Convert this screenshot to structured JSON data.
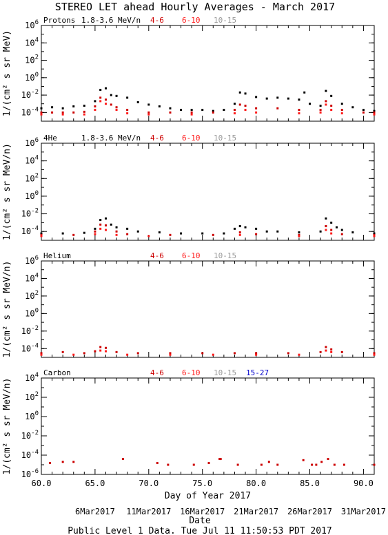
{
  "title": "STEREO LET ahead Hourly Averages - March 2017",
  "footer": "Public Level 1 Data. Tue Jul 11 11:50:53 PDT 2017",
  "colors": {
    "axis": "#000000",
    "black_series": "#000000",
    "red_series": "#cc0000",
    "bright_red_series": "#ff1a1a",
    "gray_label": "#999999",
    "blue_label": "#0000cc"
  },
  "x_axis": {
    "label": "Day of Year 2017",
    "range": [
      60.0,
      91.0
    ],
    "ticks": [
      "60.0",
      "65.0",
      "70.0",
      "75.0",
      "80.0",
      "85.0",
      "90.0"
    ],
    "tick_values": [
      60,
      65,
      70,
      75,
      80,
      85,
      90
    ],
    "date_axis_label": "Date",
    "date_ticks": [
      "6Mar2017",
      "11Mar2017",
      "16Mar2017",
      "21Mar2017",
      "26Mar2017",
      "31Mar2017"
    ],
    "date_tick_values": [
      65,
      70,
      75,
      80,
      85,
      90
    ]
  },
  "chart_data": [
    {
      "type": "scatter",
      "panel_label": "Protons",
      "ylabel": "1/(cm² s sr MeV)",
      "y_scale": "log",
      "ylim": [
        1e-05,
        1000000.0
      ],
      "y_ticks": [
        {
          "base": "10",
          "exp": "6",
          "value": 1000000.0
        },
        {
          "base": "10",
          "exp": "4",
          "value": 10000.0
        },
        {
          "base": "10",
          "exp": "2",
          "value": 100.0
        },
        {
          "base": "10",
          "exp": "0",
          "value": 1
        },
        {
          "base": "10",
          "exp": "-2",
          "value": 0.01
        },
        {
          "base": "10",
          "exp": "-4",
          "value": 0.0001
        }
      ],
      "legend": [
        "1.8-3.6 MeV/n",
        "4-6",
        "6-10",
        "10-15"
      ],
      "series": [
        {
          "name": "1.8-3.6 MeV/n",
          "color": "#000000",
          "points": [
            [
              60,
              0.0003
            ],
            [
              61,
              0.0004
            ],
            [
              62,
              0.0003
            ],
            [
              63,
              0.0005
            ],
            [
              64,
              0.0006
            ],
            [
              65,
              0.002
            ],
            [
              65.5,
              0.04
            ],
            [
              66,
              0.06
            ],
            [
              66.5,
              0.01
            ],
            [
              67,
              0.008
            ],
            [
              68,
              0.005
            ],
            [
              69,
              0.0015
            ],
            [
              70,
              0.0008
            ],
            [
              71,
              0.0005
            ],
            [
              72,
              0.0003
            ],
            [
              73,
              0.0002
            ],
            [
              74,
              0.0002
            ],
            [
              75,
              0.0002
            ],
            [
              76,
              0.00015
            ],
            [
              77,
              0.0002
            ],
            [
              78,
              0.001
            ],
            [
              78.5,
              0.02
            ],
            [
              79,
              0.015
            ],
            [
              80,
              0.006
            ],
            [
              81,
              0.004
            ],
            [
              82,
              0.005
            ],
            [
              83,
              0.004
            ],
            [
              84,
              0.003
            ],
            [
              84.5,
              0.02
            ],
            [
              85,
              0.001
            ],
            [
              86,
              0.0006
            ],
            [
              86.5,
              0.03
            ],
            [
              87,
              0.008
            ],
            [
              88,
              0.001
            ],
            [
              89,
              0.0004
            ],
            [
              90,
              0.0002
            ],
            [
              91,
              0.00015
            ]
          ]
        },
        {
          "name": "4-6",
          "color": "#cc0000",
          "points": [
            [
              60,
              0.0001
            ],
            [
              61,
              0.0001
            ],
            [
              62,
              0.0001
            ],
            [
              63,
              0.0001
            ],
            [
              64,
              0.00012
            ],
            [
              65,
              0.0005
            ],
            [
              65.5,
              0.005
            ],
            [
              66,
              0.003
            ],
            [
              66.5,
              0.0008
            ],
            [
              67,
              0.0004
            ],
            [
              68,
              0.0002
            ],
            [
              70,
              0.0001
            ],
            [
              72,
              0.0001
            ],
            [
              74,
              0.0001
            ],
            [
              76,
              0.0001
            ],
            [
              78,
              0.0002
            ],
            [
              78.5,
              0.0008
            ],
            [
              79,
              0.0006
            ],
            [
              80,
              0.0003
            ],
            [
              82,
              0.0003
            ],
            [
              84,
              0.0002
            ],
            [
              86,
              0.0002
            ],
            [
              86.5,
              0.002
            ],
            [
              87,
              0.0006
            ],
            [
              88,
              0.0002
            ],
            [
              90,
              0.0001
            ],
            [
              91,
              0.0001
            ]
          ]
        },
        {
          "name": "6-10",
          "color": "#ff1a1a",
          "points": [
            [
              60,
              6e-05
            ],
            [
              62,
              6e-05
            ],
            [
              64,
              6e-05
            ],
            [
              65,
              0.0002
            ],
            [
              65.5,
              0.002
            ],
            [
              66,
              0.001
            ],
            [
              67,
              0.0002
            ],
            [
              68,
              8e-05
            ],
            [
              70,
              6e-05
            ],
            [
              74,
              6e-05
            ],
            [
              78,
              8e-05
            ],
            [
              79,
              0.0002
            ],
            [
              80,
              0.0001
            ],
            [
              84,
              8e-05
            ],
            [
              86,
              0.0001
            ],
            [
              86.5,
              0.0008
            ],
            [
              87,
              0.0002
            ],
            [
              88,
              8e-05
            ],
            [
              91,
              6e-05
            ]
          ]
        }
      ]
    },
    {
      "type": "scatter",
      "panel_label": "4He",
      "ylabel": "1/(cm² s sr MeV/n)",
      "y_scale": "log",
      "ylim": [
        1e-05,
        1000000.0
      ],
      "y_ticks": [
        {
          "base": "10",
          "exp": "6",
          "value": 1000000.0
        },
        {
          "base": "10",
          "exp": "4",
          "value": 10000.0
        },
        {
          "base": "10",
          "exp": "2",
          "value": 100.0
        },
        {
          "base": "10",
          "exp": "0",
          "value": 1
        },
        {
          "base": "10",
          "exp": "-2",
          "value": 0.01
        },
        {
          "base": "10",
          "exp": "-4",
          "value": 0.0001
        }
      ],
      "legend": [
        "1.8-3.6 MeV/n",
        "4-6",
        "6-10",
        "10-15"
      ],
      "series": [
        {
          "name": "1.8-3.6 MeV/n",
          "color": "#000000",
          "points": [
            [
              60,
              6e-05
            ],
            [
              62,
              6e-05
            ],
            [
              64,
              7e-05
            ],
            [
              65,
              0.0002
            ],
            [
              65.5,
              0.002
            ],
            [
              66,
              0.003
            ],
            [
              66.5,
              0.0006
            ],
            [
              67,
              0.0003
            ],
            [
              68,
              0.0002
            ],
            [
              69,
              0.0001
            ],
            [
              71,
              8e-05
            ],
            [
              73,
              6e-05
            ],
            [
              75,
              6e-05
            ],
            [
              77,
              6e-05
            ],
            [
              78,
              0.0002
            ],
            [
              78.5,
              0.0004
            ],
            [
              79,
              0.0003
            ],
            [
              80,
              0.0002
            ],
            [
              81,
              0.0001
            ],
            [
              82,
              0.0001
            ],
            [
              84,
              8e-05
            ],
            [
              86,
              0.0001
            ],
            [
              86.5,
              0.003
            ],
            [
              87,
              0.001
            ],
            [
              87.5,
              0.0003
            ],
            [
              88,
              0.00015
            ],
            [
              89,
              8e-05
            ],
            [
              91,
              6e-05
            ]
          ]
        },
        {
          "name": "4-6",
          "color": "#cc0000",
          "points": [
            [
              60,
              4e-05
            ],
            [
              63,
              4e-05
            ],
            [
              65,
              0.0001
            ],
            [
              65.5,
              0.0006
            ],
            [
              66,
              0.0005
            ],
            [
              67,
              0.0001
            ],
            [
              68,
              5e-05
            ],
            [
              72,
              4e-05
            ],
            [
              76,
              4e-05
            ],
            [
              78.5,
              8e-05
            ],
            [
              80,
              5e-05
            ],
            [
              84,
              4e-05
            ],
            [
              86.5,
              0.0004
            ],
            [
              87,
              0.00015
            ],
            [
              88,
              5e-05
            ],
            [
              91,
              4e-05
            ]
          ]
        },
        {
          "name": "6-10",
          "color": "#ff1a1a",
          "points": [
            [
              60,
              3e-05
            ],
            [
              65,
              5e-05
            ],
            [
              65.5,
              0.0002
            ],
            [
              66,
              0.00015
            ],
            [
              67,
              4e-05
            ],
            [
              70,
              3e-05
            ],
            [
              78.5,
              4e-05
            ],
            [
              84,
              3e-05
            ],
            [
              86.5,
              0.00015
            ],
            [
              87,
              6e-05
            ],
            [
              91,
              3e-05
            ]
          ]
        }
      ]
    },
    {
      "type": "scatter",
      "panel_label": "Helium",
      "ylabel": "1/(cm² s sr MeV/n)",
      "y_scale": "log",
      "ylim": [
        1e-05,
        1000000.0
      ],
      "y_ticks": [
        {
          "base": "10",
          "exp": "6",
          "value": 1000000.0
        },
        {
          "base": "10",
          "exp": "4",
          "value": 10000.0
        },
        {
          "base": "10",
          "exp": "2",
          "value": 100.0
        },
        {
          "base": "10",
          "exp": "0",
          "value": 1
        },
        {
          "base": "10",
          "exp": "-2",
          "value": 0.01
        },
        {
          "base": "10",
          "exp": "-4",
          "value": 0.0001
        }
      ],
      "legend": [
        "4-6",
        "6-10",
        "10-15"
      ],
      "series": [
        {
          "name": "4-6",
          "color": "#cc0000",
          "points": [
            [
              60,
              3e-05
            ],
            [
              62,
              4e-05
            ],
            [
              64,
              3e-05
            ],
            [
              65,
              5e-05
            ],
            [
              65.5,
              0.00015
            ],
            [
              66,
              0.00012
            ],
            [
              67,
              4e-05
            ],
            [
              69,
              3e-05
            ],
            [
              72,
              3e-05
            ],
            [
              75,
              3e-05
            ],
            [
              78,
              3e-05
            ],
            [
              80,
              3e-05
            ],
            [
              83,
              3e-05
            ],
            [
              86,
              4e-05
            ],
            [
              86.5,
              0.00015
            ],
            [
              87,
              8e-05
            ],
            [
              88,
              4e-05
            ],
            [
              91,
              3e-05
            ]
          ]
        },
        {
          "name": "6-10",
          "color": "#ff1a1a",
          "points": [
            [
              60,
              2e-05
            ],
            [
              63,
              2e-05
            ],
            [
              65.5,
              6e-05
            ],
            [
              66,
              5e-05
            ],
            [
              68,
              2e-05
            ],
            [
              72,
              2e-05
            ],
            [
              76,
              2e-05
            ],
            [
              80,
              2e-05
            ],
            [
              84,
              2e-05
            ],
            [
              86.5,
              6e-05
            ],
            [
              87,
              4e-05
            ],
            [
              91,
              2e-05
            ]
          ]
        }
      ]
    },
    {
      "type": "scatter",
      "panel_label": "Carbon",
      "ylabel": "1/(cm² s sr MeV/n)",
      "y_scale": "log",
      "ylim": [
        1e-06,
        10000.0
      ],
      "y_ticks": [
        {
          "base": "10",
          "exp": "4",
          "value": 10000.0
        },
        {
          "base": "10",
          "exp": "2",
          "value": 100.0
        },
        {
          "base": "10",
          "exp": "0",
          "value": 1
        },
        {
          "base": "10",
          "exp": "-2",
          "value": 0.01
        },
        {
          "base": "10",
          "exp": "-4",
          "value": 0.0001
        },
        {
          "base": "10",
          "exp": "-6",
          "value": 1e-06
        }
      ],
      "legend": [
        "4-6",
        "6-10",
        "10-15",
        "15-27"
      ],
      "series": [
        {
          "name": "4-6",
          "color": "#cc0000",
          "points": [
            [
              60.8,
              1.5e-05
            ],
            [
              62.0,
              2e-05
            ],
            [
              63.0,
              2e-05
            ],
            [
              67.6,
              4e-05
            ],
            [
              70.8,
              1.5e-05
            ],
            [
              71.8,
              1e-05
            ],
            [
              74.2,
              1e-05
            ],
            [
              75.6,
              1.5e-05
            ],
            [
              76.6,
              4e-05
            ],
            [
              76.7,
              4e-05
            ],
            [
              78.3,
              1e-05
            ],
            [
              80.5,
              1e-05
            ],
            [
              81.2,
              2e-05
            ],
            [
              82.0,
              1e-05
            ],
            [
              84.4,
              3e-05
            ],
            [
              85.2,
              1e-05
            ],
            [
              85.6,
              1e-05
            ],
            [
              86.1,
              2e-05
            ],
            [
              86.7,
              4e-05
            ],
            [
              87.3,
              1e-05
            ],
            [
              88.2,
              1e-05
            ],
            [
              91.0,
              1e-05
            ]
          ]
        }
      ]
    }
  ]
}
